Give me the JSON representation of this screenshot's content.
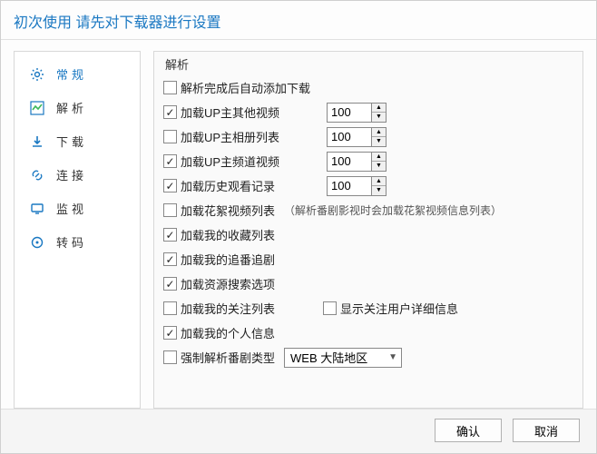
{
  "window": {
    "title": "初次使用 请先对下载器进行设置"
  },
  "sidebar": {
    "items": [
      {
        "label": "常规",
        "icon": "gear"
      },
      {
        "label": "解析",
        "icon": "chart"
      },
      {
        "label": "下载",
        "icon": "download"
      },
      {
        "label": "连接",
        "icon": "link"
      },
      {
        "label": "监视",
        "icon": "monitor"
      },
      {
        "label": "转码",
        "icon": "transcode"
      }
    ],
    "active_index": 0
  },
  "fieldset": {
    "legend": "解析"
  },
  "rows": [
    {
      "col1": {
        "checked": false,
        "label": "解析完成后自动添加下载"
      }
    },
    {
      "col1": {
        "checked": true,
        "label": "加载UP主其他视频"
      },
      "spinner": "100"
    },
    {
      "col1": {
        "checked": false,
        "label": "加载UP主相册列表"
      },
      "spinner": "100"
    },
    {
      "col1": {
        "checked": true,
        "label": "加载UP主频道视频"
      },
      "spinner": "100"
    },
    {
      "col1": {
        "checked": true,
        "label": "加载历史观看记录"
      },
      "spinner": "100"
    },
    {
      "col1": {
        "checked": false,
        "label": "加载花絮视频列表"
      },
      "note": "（解析番剧影视时会加载花絮视频信息列表）"
    },
    {
      "col1": {
        "checked": true,
        "label": "加载我的收藏列表"
      }
    },
    {
      "col1": {
        "checked": true,
        "label": "加载我的追番追剧"
      }
    },
    {
      "col1": {
        "checked": true,
        "label": "加载资源搜索选项"
      }
    },
    {
      "col1": {
        "checked": false,
        "label": "加载我的关注列表"
      },
      "col2": {
        "checked": false,
        "label": "显示关注用户详细信息"
      }
    },
    {
      "col1": {
        "checked": true,
        "label": "加载我的个人信息"
      }
    },
    {
      "col1": {
        "checked": false,
        "label": "强制解析番剧类型"
      },
      "combo": "WEB 大陆地区"
    }
  ],
  "buttons": {
    "ok": "确认",
    "cancel": "取消"
  },
  "colors": {
    "accent": "#1a78c2",
    "border": "#d8d8d8",
    "text": "#222222",
    "bg": "#fdfdfd"
  }
}
